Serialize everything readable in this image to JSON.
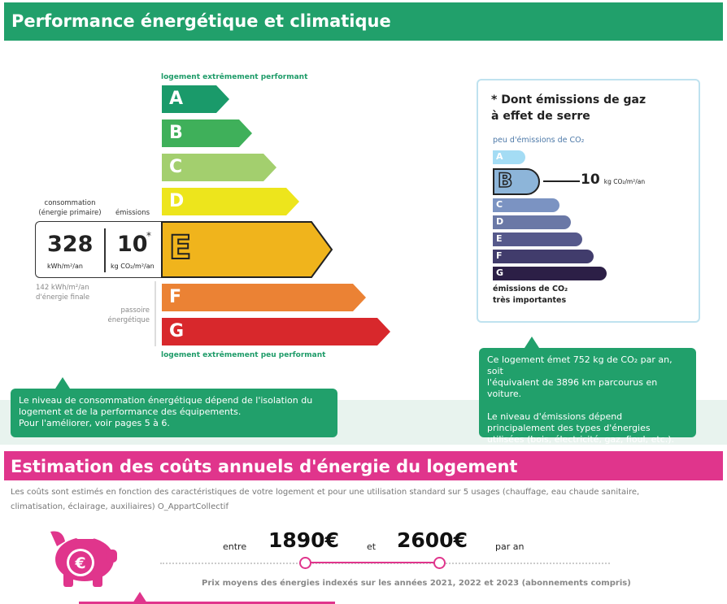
{
  "header": {
    "title": "Performance énergétique et climatique"
  },
  "dpe": {
    "top_caption": "logement extrêmement performant",
    "bottom_caption": "logement extrêmement peu performant",
    "classes": [
      {
        "letter": "A",
        "color": "#1a9a6a"
      },
      {
        "letter": "B",
        "color": "#3fb05a"
      },
      {
        "letter": "C",
        "color": "#a3cf6e"
      },
      {
        "letter": "D",
        "color": "#ede51c"
      },
      {
        "letter": "E",
        "color": "#f0b41c"
      },
      {
        "letter": "F",
        "color": "#eb8234"
      },
      {
        "letter": "G",
        "color": "#d8282c"
      }
    ],
    "current_class": "E",
    "consommation_label": "consommation",
    "consommation_sub": "(énergie primaire)",
    "emissions_label": "émissions",
    "consommation_value": "328",
    "consommation_unit": "kWh/m²/an",
    "emissions_value": "10",
    "emissions_star": "*",
    "emissions_unit": "kg CO₂/m²/an",
    "finale_line1": "142 kWh/m²/an",
    "finale_line2": "d'énergie finale",
    "passoire_line1": "passoire",
    "passoire_line2": "énergétique"
  },
  "ges": {
    "title_line1": "* Dont émissions de gaz",
    "title_line2": "à effet de serre",
    "low_label": "peu d'émissions de CO₂",
    "high_line1": "émissions de CO₂",
    "high_line2": "très importantes",
    "classes": [
      {
        "letter": "A",
        "color": "#a4dcf4"
      },
      {
        "letter": "B",
        "color": "#8db5d9"
      },
      {
        "letter": "C",
        "color": "#7b93c2"
      },
      {
        "letter": "D",
        "color": "#6a78a6"
      },
      {
        "letter": "E",
        "color": "#56598b"
      },
      {
        "letter": "F",
        "color": "#413c6c"
      },
      {
        "letter": "G",
        "color": "#2c1f46"
      }
    ],
    "current_class": "B",
    "value": "10",
    "value_unit": "kg CO₂/m²/an"
  },
  "tips": {
    "left_line1": "Le niveau de consommation énergétique dépend de l'isolation du",
    "left_line2": "logement et de la performance des équipements.",
    "left_line3": "Pour l'améliorer, voir pages 5 à 6.",
    "right_line1": "Ce logement émet 752 kg de CO₂ par an, soit",
    "right_line2": "l'équivalent de 3896 km parcourus en voiture.",
    "right_line3": "Le niveau d'émissions dépend",
    "right_line4": "principalement des types d'énergies",
    "right_line5": "utilisées (bois, électricité, gaz, fioul, etc.)."
  },
  "costs": {
    "title": "Estimation des coûts annuels d'énergie du logement",
    "desc_line1": "Les coûts sont estimés en fonction des caractéristiques de votre logement et pour une utilisation standard sur 5 usages (chauffage, eau chaude sanitaire,",
    "desc_line2": "climatisation, éclairage, auxiliaires) O_AppartCollectif",
    "entre": "entre",
    "low": "1890€",
    "et": "et",
    "high": "2600€",
    "par_an": "par an",
    "prix_note": "Prix moyens des énergies indexés sur les années 2021, 2022 et 2023 (abonnements compris)"
  },
  "colors": {
    "green": "#21a06b",
    "pink": "#e0358c"
  }
}
